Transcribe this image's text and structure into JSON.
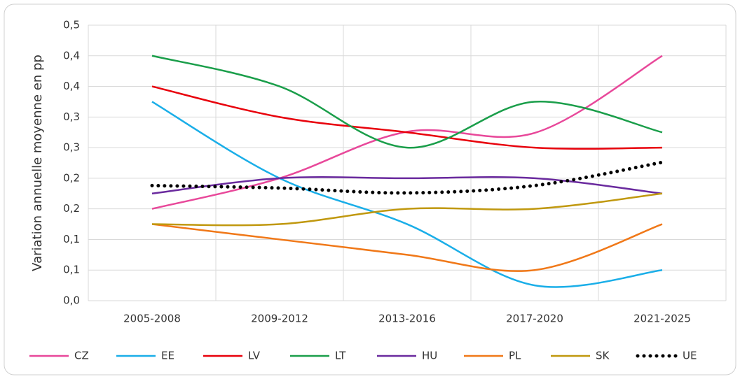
{
  "chart_data": {
    "type": "line",
    "ylabel": "Variation annuelle moyenne en pp",
    "categories": [
      "2005-2008",
      "2009-2012",
      "2013-2016",
      "2017-2020",
      "2021-2025"
    ],
    "ylim": [
      0,
      0.45
    ],
    "yticks": [
      {
        "value": 0,
        "label": "0,0"
      },
      {
        "value": 0.05,
        "label": "0,1"
      },
      {
        "value": 0.1,
        "label": "0,1"
      },
      {
        "value": 0.15,
        "label": "0,2"
      },
      {
        "value": 0.2,
        "label": "0,2"
      },
      {
        "value": 0.25,
        "label": "0,3"
      },
      {
        "value": 0.3,
        "label": "0,3"
      },
      {
        "value": 0.35,
        "label": "0,4"
      },
      {
        "value": 0.4,
        "label": "0,4"
      },
      {
        "value": 0.45,
        "label": "0,5"
      }
    ],
    "grid": true,
    "legend": "bottom",
    "series": [
      {
        "name": "CZ",
        "color": "#e8489a",
        "values": [
          0.15,
          0.2,
          0.276,
          0.274,
          0.4
        ]
      },
      {
        "name": "EE",
        "color": "#1aaee8",
        "values": [
          0.325,
          0.2,
          0.125,
          0.025,
          0.05
        ]
      },
      {
        "name": "LV",
        "color": "#e8000b",
        "values": [
          0.35,
          0.3,
          0.275,
          0.25,
          0.25
        ]
      },
      {
        "name": "LT",
        "color": "#1a9e4a",
        "values": [
          0.4,
          0.35,
          0.25,
          0.325,
          0.275
        ]
      },
      {
        "name": "HU",
        "color": "#6a2a9e",
        "values": [
          0.175,
          0.2,
          0.2,
          0.2,
          0.175
        ]
      },
      {
        "name": "PL",
        "color": "#f07818",
        "values": [
          0.125,
          0.1,
          0.075,
          0.05,
          0.125
        ]
      },
      {
        "name": "SK",
        "color": "#c0980e",
        "values": [
          0.125,
          0.125,
          0.15,
          0.15,
          0.175
        ]
      },
      {
        "name": "UE",
        "color": "#000000",
        "dotted": true,
        "values": [
          0.188,
          0.184,
          0.176,
          0.188,
          0.226
        ]
      }
    ]
  }
}
